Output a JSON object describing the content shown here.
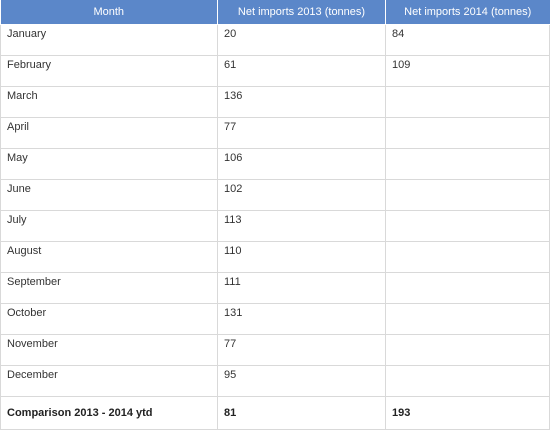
{
  "table": {
    "headers": [
      "Month",
      "Net imports 2013 (tonnes)",
      "Net imports 2014 (tonnes)"
    ],
    "rows": [
      {
        "month": "January",
        "y2013": "20",
        "y2014": "84"
      },
      {
        "month": "February",
        "y2013": "61",
        "y2014": "109"
      },
      {
        "month": "March",
        "y2013": "136",
        "y2014": ""
      },
      {
        "month": "April",
        "y2013": "77",
        "y2014": ""
      },
      {
        "month": "May",
        "y2013": "106",
        "y2014": ""
      },
      {
        "month": "June",
        "y2013": "102",
        "y2014": ""
      },
      {
        "month": "July",
        "y2013": "113",
        "y2014": ""
      },
      {
        "month": "August",
        "y2013": "110",
        "y2014": ""
      },
      {
        "month": "September",
        "y2013": "111",
        "y2014": ""
      },
      {
        "month": "October",
        "y2013": "131",
        "y2014": ""
      },
      {
        "month": "November",
        "y2013": "77",
        "y2014": ""
      },
      {
        "month": "December",
        "y2013": "95",
        "y2014": ""
      }
    ],
    "total": {
      "label": "Comparison 2013 - 2014 ytd",
      "y2013": "81",
      "y2014": "193"
    }
  },
  "colors": {
    "header_background": "#5b87c9",
    "header_text": "#ffffff",
    "grid_border": "#d9d9d9"
  }
}
